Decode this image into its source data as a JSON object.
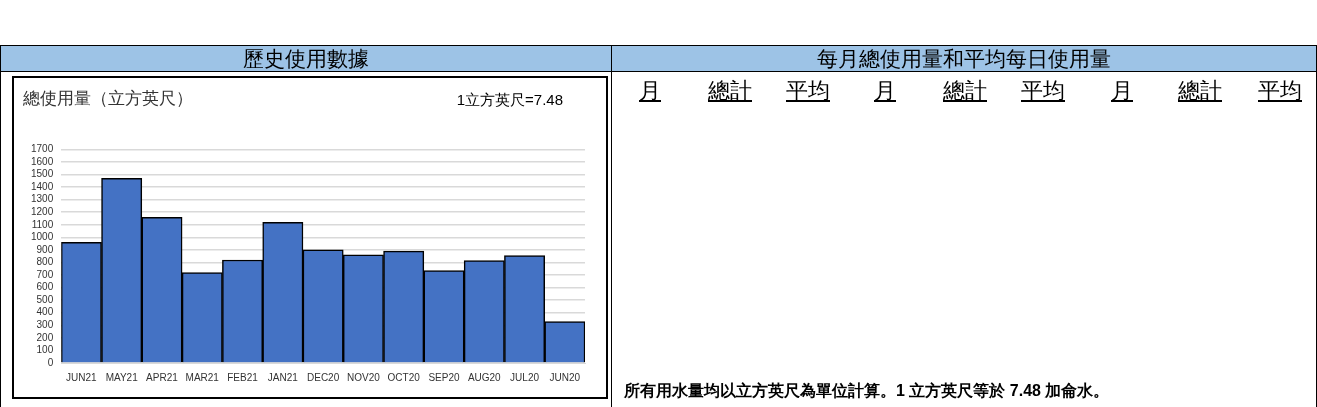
{
  "chart_data": {
    "type": "bar",
    "title": "總使用量（立方英尺）",
    "categories": [
      "JUN21",
      "MAY21",
      "APR21",
      "MAR21",
      "FEB21",
      "JAN21",
      "DEC20",
      "NOV20",
      "OCT20",
      "SEP20",
      "AUG20",
      "JUL20",
      "JUN20"
    ],
    "values": [
      960,
      1470,
      1160,
      720,
      820,
      1120,
      900,
      860,
      890,
      735,
      815,
      855,
      330
    ],
    "color": "#4472c4",
    "ylim": [
      0,
      1700
    ],
    "yticks": [
      0,
      100,
      200,
      300,
      400,
      500,
      600,
      700,
      800,
      900,
      1000,
      1100,
      1200,
      1300,
      1400,
      1500,
      1600,
      1700
    ],
    "grid": "y",
    "annotations": [
      "1立方英尺=7.48",
      "歷史使用數據",
      "每月總使用量和平均每日使用量",
      "月",
      "總計",
      "平均",
      "月",
      "總計",
      "平均",
      "月",
      "總計",
      "平均",
      "所有用水量均以立方英尺為單位計算。1 立方英尺等於 7.48 加侖水。"
    ]
  }
}
